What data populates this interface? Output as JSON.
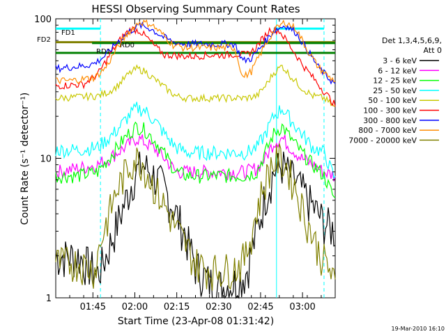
{
  "chart_data": {
    "type": "line",
    "title": "HESSI Observing Summary Count Rates",
    "xlabel": "Start Time (23-Apr-08 01:31:42)",
    "ylabel": "Count Rate (s⁻¹ detector⁻¹)",
    "yscale": "log",
    "ylim": [
      1,
      100
    ],
    "xlim_minutes": [
      0,
      100
    ],
    "x_ticks": [
      {
        "m": 13.3,
        "label": "01:45"
      },
      {
        "m": 28.3,
        "label": "02:00"
      },
      {
        "m": 43.3,
        "label": "02:15"
      },
      {
        "m": 58.3,
        "label": "02:30"
      },
      {
        "m": 73.3,
        "label": "02:45"
      },
      {
        "m": 88.3,
        "label": "03:00"
      }
    ],
    "y_ticks": [
      {
        "v": 1,
        "label": "1"
      },
      {
        "v": 10,
        "label": "10"
      },
      {
        "v": 100,
        "label": "100"
      }
    ],
    "timestamp": "19-Mar-2010 16:10",
    "legend_header": [
      "Det 1,3,4,5,6,9,",
      "Att 0"
    ],
    "vlines_minutes": [
      16,
      79,
      96
    ],
    "series": [
      {
        "name": "3 - 6 keV",
        "color": "#000000",
        "x": [
          0,
          8,
          15,
          18,
          21,
          25,
          28,
          31,
          34,
          38,
          42,
          46,
          50,
          55,
          60,
          64,
          68,
          72,
          75,
          78,
          81,
          84,
          88,
          92,
          96,
          100
        ],
        "y": [
          2,
          2,
          1.5,
          2,
          3,
          5,
          7.5,
          9,
          8,
          6.5,
          4.5,
          3,
          1.7,
          1.3,
          1.2,
          1.3,
          1.5,
          3,
          5.5,
          8,
          9,
          7.5,
          6,
          4.5,
          3.5,
          3
        ]
      },
      {
        "name": "6 - 12 keV",
        "color": "#ff00ff",
        "x": [
          0,
          8,
          15,
          19,
          22,
          26,
          29,
          32,
          36,
          40,
          43,
          47,
          52,
          56,
          60,
          64,
          68,
          72,
          75,
          78,
          81,
          84,
          88,
          92,
          96,
          100
        ],
        "y": [
          8,
          8.5,
          9,
          10,
          11,
          12.5,
          14,
          13,
          11.5,
          9.5,
          8,
          8,
          8,
          8,
          8,
          8,
          8,
          8.5,
          10,
          13,
          14,
          12,
          10,
          9,
          8,
          7.5
        ]
      },
      {
        "name": "12 - 25 keV",
        "color": "#00ff00",
        "x": [
          0,
          8,
          15,
          19,
          22,
          26,
          29,
          32,
          36,
          40,
          43,
          47,
          52,
          56,
          60,
          64,
          68,
          72,
          75,
          78,
          81,
          84,
          88,
          92,
          96,
          100
        ],
        "y": [
          7.5,
          7.5,
          8,
          10,
          12,
          15,
          17,
          16,
          13,
          10,
          8,
          7.5,
          7.5,
          7.5,
          7.5,
          7.5,
          7.5,
          8,
          11,
          15,
          17,
          14,
          11,
          9,
          7.5,
          5
        ]
      },
      {
        "name": "25 - 50 keV",
        "color": "#00ffff",
        "x": [
          0,
          8,
          15,
          19,
          22,
          26,
          29,
          32,
          36,
          40,
          43,
          47,
          52,
          56,
          60,
          64,
          68,
          72,
          75,
          78,
          81,
          84,
          88,
          92,
          96,
          100
        ],
        "y": [
          11.5,
          11.5,
          12,
          14,
          16,
          20,
          23,
          22,
          18,
          14,
          12,
          11,
          11,
          11,
          11,
          11,
          11,
          12,
          15,
          20,
          23,
          19,
          15,
          12,
          11,
          7
        ]
      },
      {
        "name": "50 - 100 keV",
        "color": "#c8c800",
        "x": [
          0,
          8,
          15,
          19,
          22,
          26,
          29,
          32,
          36,
          40,
          43,
          47,
          52,
          56,
          60,
          64,
          68,
          72,
          75,
          78,
          81,
          84,
          88,
          92,
          96,
          100
        ],
        "y": [
          27,
          27.5,
          28,
          30,
          33,
          40,
          44,
          42,
          36,
          31,
          28,
          27,
          27,
          27,
          27,
          27,
          27,
          28,
          33,
          41,
          46,
          39,
          32,
          28,
          27,
          23
        ]
      },
      {
        "name": "100 - 300 keV",
        "color": "#ff0000",
        "x": [
          0,
          5,
          10,
          15,
          18,
          21,
          24,
          27,
          30,
          33,
          36,
          39,
          42,
          45,
          50,
          55,
          60,
          65,
          68,
          71,
          74,
          77,
          80,
          83,
          86,
          89,
          92,
          95,
          98,
          100
        ],
        "y": [
          33,
          33.5,
          34,
          40,
          50,
          62,
          75,
          85,
          82,
          72,
          62,
          55,
          55,
          54,
          54,
          55,
          55,
          56,
          55,
          60,
          72,
          85,
          82,
          68,
          55,
          45,
          38,
          32,
          27,
          24
        ]
      },
      {
        "name": "300 - 800 keV",
        "color": "#0000ff",
        "x": [
          0,
          5,
          10,
          14,
          18,
          22,
          26,
          30,
          34,
          38,
          42,
          46,
          50,
          55,
          60,
          64,
          67,
          70,
          74,
          78,
          82,
          86,
          90,
          94,
          98,
          100
        ],
        "y": [
          44,
          45,
          46,
          48,
          55,
          68,
          80,
          90,
          85,
          75,
          68,
          66,
          66,
          66,
          66,
          66,
          50,
          52,
          65,
          82,
          90,
          80,
          60,
          45,
          37,
          34
        ]
      },
      {
        "name": "800 - 7000 keV",
        "color": "#ff8c00",
        "x": [
          0,
          5,
          10,
          14,
          18,
          22,
          26,
          30,
          34,
          38,
          42,
          46,
          50,
          55,
          60,
          64,
          67,
          70,
          74,
          78,
          82,
          86,
          90,
          94,
          98,
          100
        ],
        "y": [
          36,
          36,
          37,
          38,
          45,
          62,
          80,
          95,
          92,
          78,
          65,
          62,
          62,
          62,
          62,
          62,
          38,
          42,
          60,
          82,
          95,
          85,
          60,
          45,
          38,
          36
        ]
      },
      {
        "name": "7000 - 20000 keV",
        "color": "#808000",
        "x": [
          0,
          8,
          14,
          16,
          19,
          22,
          25,
          28,
          31,
          34,
          38,
          42,
          46,
          50,
          55,
          60,
          65,
          68,
          71,
          74,
          77,
          80,
          83,
          86,
          90,
          94,
          98,
          100
        ],
        "y": [
          1.8,
          1.8,
          1.6,
          2.5,
          4,
          6,
          8,
          10,
          9.5,
          7,
          5,
          3.5,
          2.5,
          1.8,
          1.6,
          1.6,
          1.7,
          2,
          3.5,
          6,
          9,
          10,
          8.5,
          6,
          3.5,
          2.2,
          1.6,
          1.2
        ]
      }
    ],
    "hlines": [
      {
        "label": "FD2",
        "color": "#808000",
        "value": 68,
        "from_m": 0,
        "to_m": 100
      },
      {
        "label": "",
        "color": "#008000",
        "value": 67,
        "from_m": 13,
        "to_m": 100
      },
      {
        "label": "RD0",
        "color": "#008000",
        "value": 57,
        "from_m": 0,
        "to_m": 100
      },
      {
        "label": "FD1",
        "color": "#00ffff",
        "value": 85,
        "from_m": 0,
        "to_m": 16
      },
      {
        "label": "",
        "color": "#00ffff",
        "value": 85,
        "from_m": 78,
        "to_m": 96
      },
      {
        "label": "RD1",
        "color": "#008000",
        "value": 58,
        "from_m": 0,
        "to_m": 0
      }
    ]
  }
}
